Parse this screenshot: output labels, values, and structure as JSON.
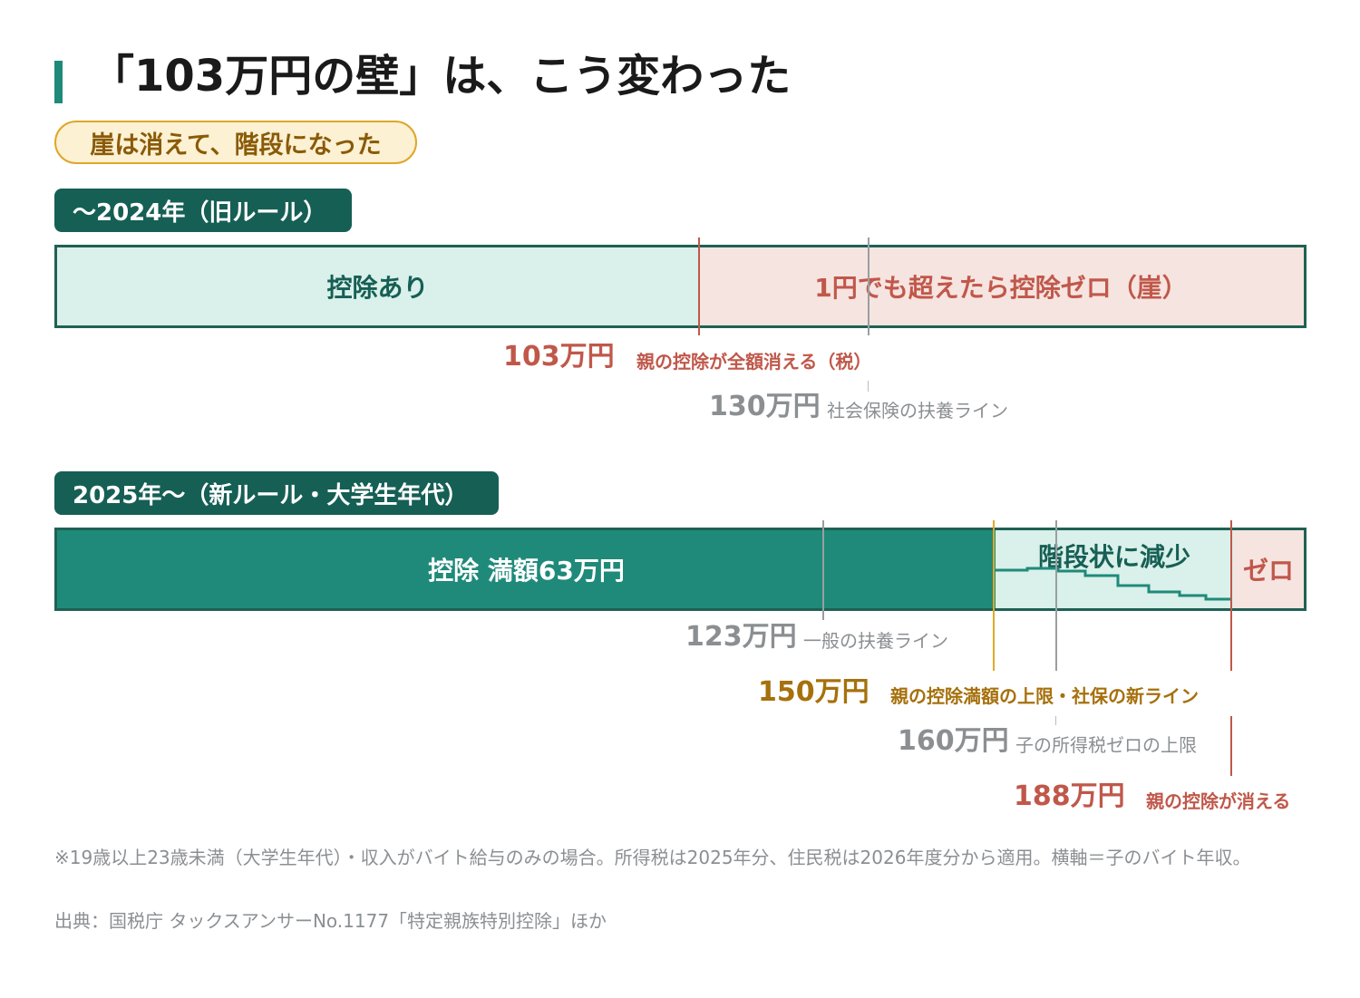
{
  "title": "「103万円の壁」は、こう変わった",
  "subtitle_pill": "崖は消えて、階段になった",
  "old_rule": {
    "label": "〜2024年（旧ルール）",
    "seg_deduction": "控除あり",
    "seg_cliff": "1円でも超えたら控除ゼロ（崖）",
    "m103": {
      "value": "103万円",
      "desc": "親の控除が全額消える（税）"
    },
    "m130": {
      "value": "130万円",
      "desc": "社会保険の扶養ライン"
    }
  },
  "new_rule": {
    "label": "2025年〜（新ルール・大学生年代）",
    "seg_full": "控除 満額63万円",
    "seg_step": "階段状に減少",
    "seg_zero": "ゼロ",
    "m123": {
      "value": "123万円",
      "desc": "一般の扶養ライン"
    },
    "m150": {
      "value": "150万円",
      "desc": "親の控除満額の上限・社保の新ライン"
    },
    "m160": {
      "value": "160万円",
      "desc": "子の所得税ゼロの上限"
    },
    "m188": {
      "value": "188万円",
      "desc": "親の控除が消える"
    }
  },
  "notes": {
    "line1": "※19歳以上23歳未満（大学生年代）・収入がバイト給与のみの場合。所得税は2025年分、住民税は2026年度分から適用。横軸＝子のバイト年収。",
    "line2": "出典：国税庁 タックスアンサーNo.1177「特定親族特別控除」ほか"
  },
  "colors": {
    "dark_teal": "#165f55",
    "teal": "#1f8a7a",
    "light_teal": "#daf0ea",
    "light_red": "#f6e4e1",
    "red": "#c0584a",
    "gold": "#e0a92a",
    "gray": "#9a9ea1"
  }
}
